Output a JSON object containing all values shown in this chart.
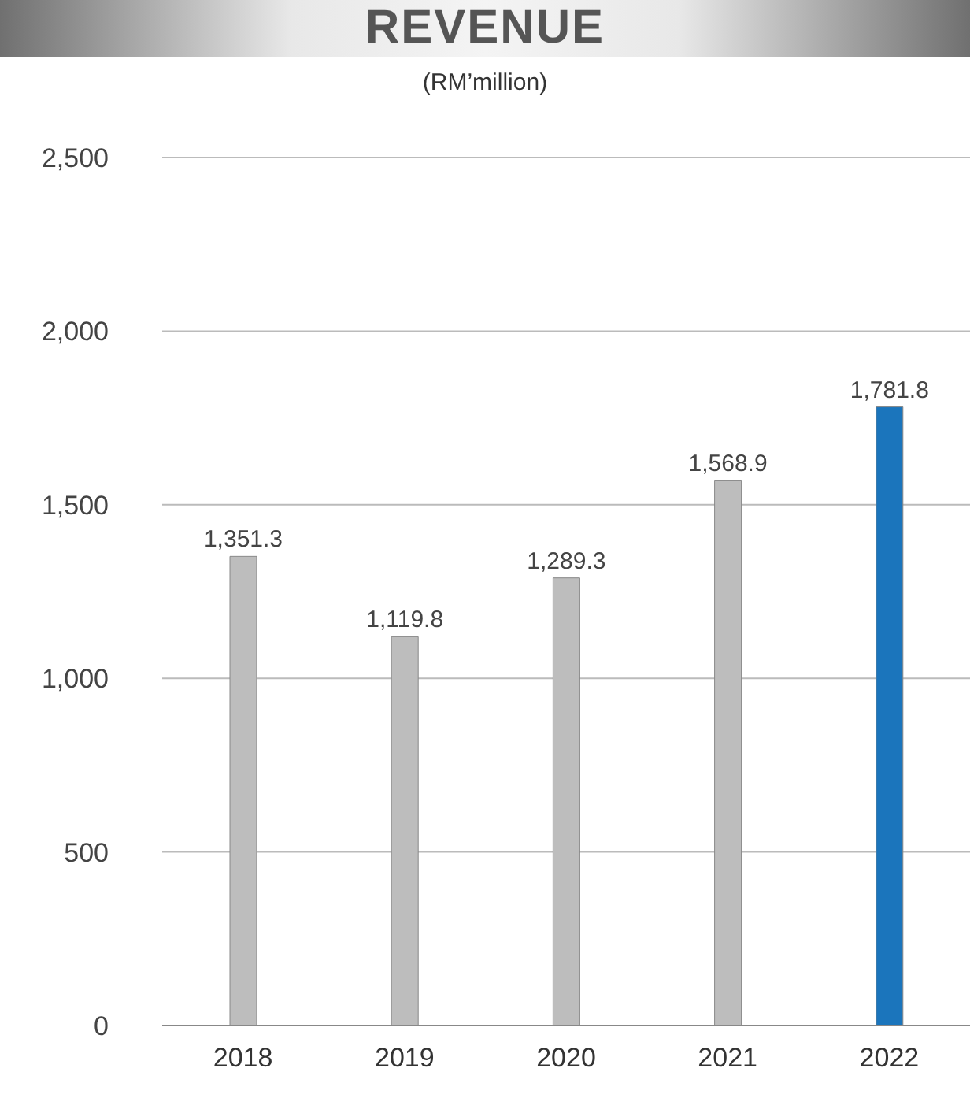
{
  "chart_data": {
    "type": "bar",
    "title": "REVENUE",
    "subtitle": "(RM’million)",
    "categories": [
      "2018",
      "2019",
      "2020",
      "2021",
      "2022"
    ],
    "values": [
      1351.3,
      1119.8,
      1289.3,
      1568.9,
      1781.8
    ],
    "colors": [
      "#bdbdbd",
      "#bdbdbd",
      "#bdbdbd",
      "#bdbdbd",
      "#1b75bc"
    ],
    "value_labels": [
      "1,351.3",
      "1,119.8",
      "1,289.3",
      "1,568.9",
      "1,781.8"
    ],
    "ylim": [
      0,
      2500
    ],
    "yticks": [
      0,
      500,
      {
        "value": 1000,
        "label": "1,000"
      },
      {
        "value": 1500,
        "label": "1,500"
      },
      {
        "value": 2000,
        "label": "2,000"
      },
      {
        "value": 2500,
        "label": "2,500"
      }
    ],
    "grid": "y"
  }
}
